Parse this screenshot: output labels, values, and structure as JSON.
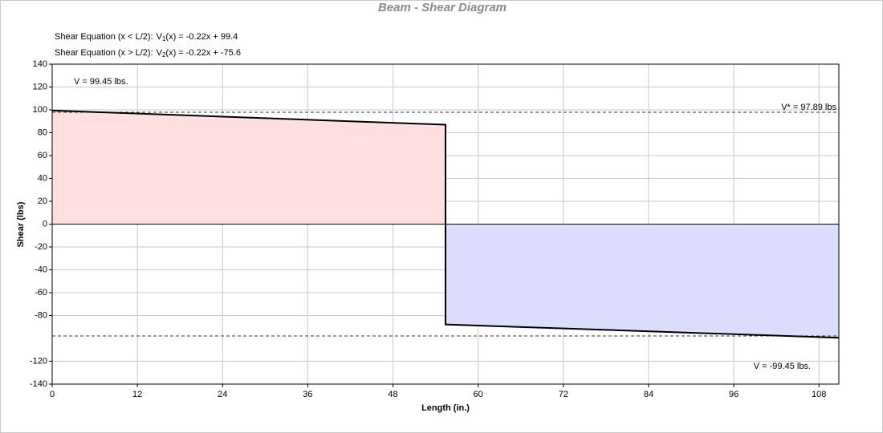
{
  "chart_data": {
    "type": "shear",
    "title": "Beam - Shear Diagram",
    "x_label": "Length (in.)",
    "y_label": "Shear (lbs)",
    "equations": [
      {
        "label": "Shear Equation  (x < L/2):",
        "lhs": "V",
        "sub": "1",
        "rhs": "(x) = -0.22x + 99.4"
      },
      {
        "label": "Shear Equation  (x > L/2):",
        "lhs": "V",
        "sub": "2",
        "rhs": "(x) = -0.22x + -75.6"
      }
    ],
    "xlim": [
      0,
      110.8
    ],
    "xticks": [
      0,
      12,
      24,
      36,
      48,
      60,
      72,
      84,
      96,
      108
    ],
    "ylim": [
      -140,
      140
    ],
    "yticks": [
      140,
      120,
      100,
      80,
      60,
      40,
      20,
      0,
      -20,
      -40,
      -60,
      -80,
      -120,
      -140
    ],
    "grid": true,
    "areas": [
      {
        "x": [
          0,
          55.4
        ],
        "values": [
          99.45,
          87.0
        ],
        "color": "#ffdfdf"
      },
      {
        "x": [
          55.4,
          110.8
        ],
        "values": [
          -87.8,
          -99.45
        ],
        "color": "#dcdcfc"
      }
    ],
    "line": {
      "x": [
        0,
        55.4,
        55.4,
        110.8
      ],
      "values": [
        99.45,
        87.0,
        -87.8,
        -99.45
      ],
      "color": "#000000"
    },
    "hlines": [
      {
        "value": 97.89,
        "label": "V* = 97.89 lbs"
      },
      {
        "value": -97.89
      }
    ],
    "annotations": [
      "V = 99.45 lbs.",
      "V = -99.45 lbs."
    ]
  }
}
